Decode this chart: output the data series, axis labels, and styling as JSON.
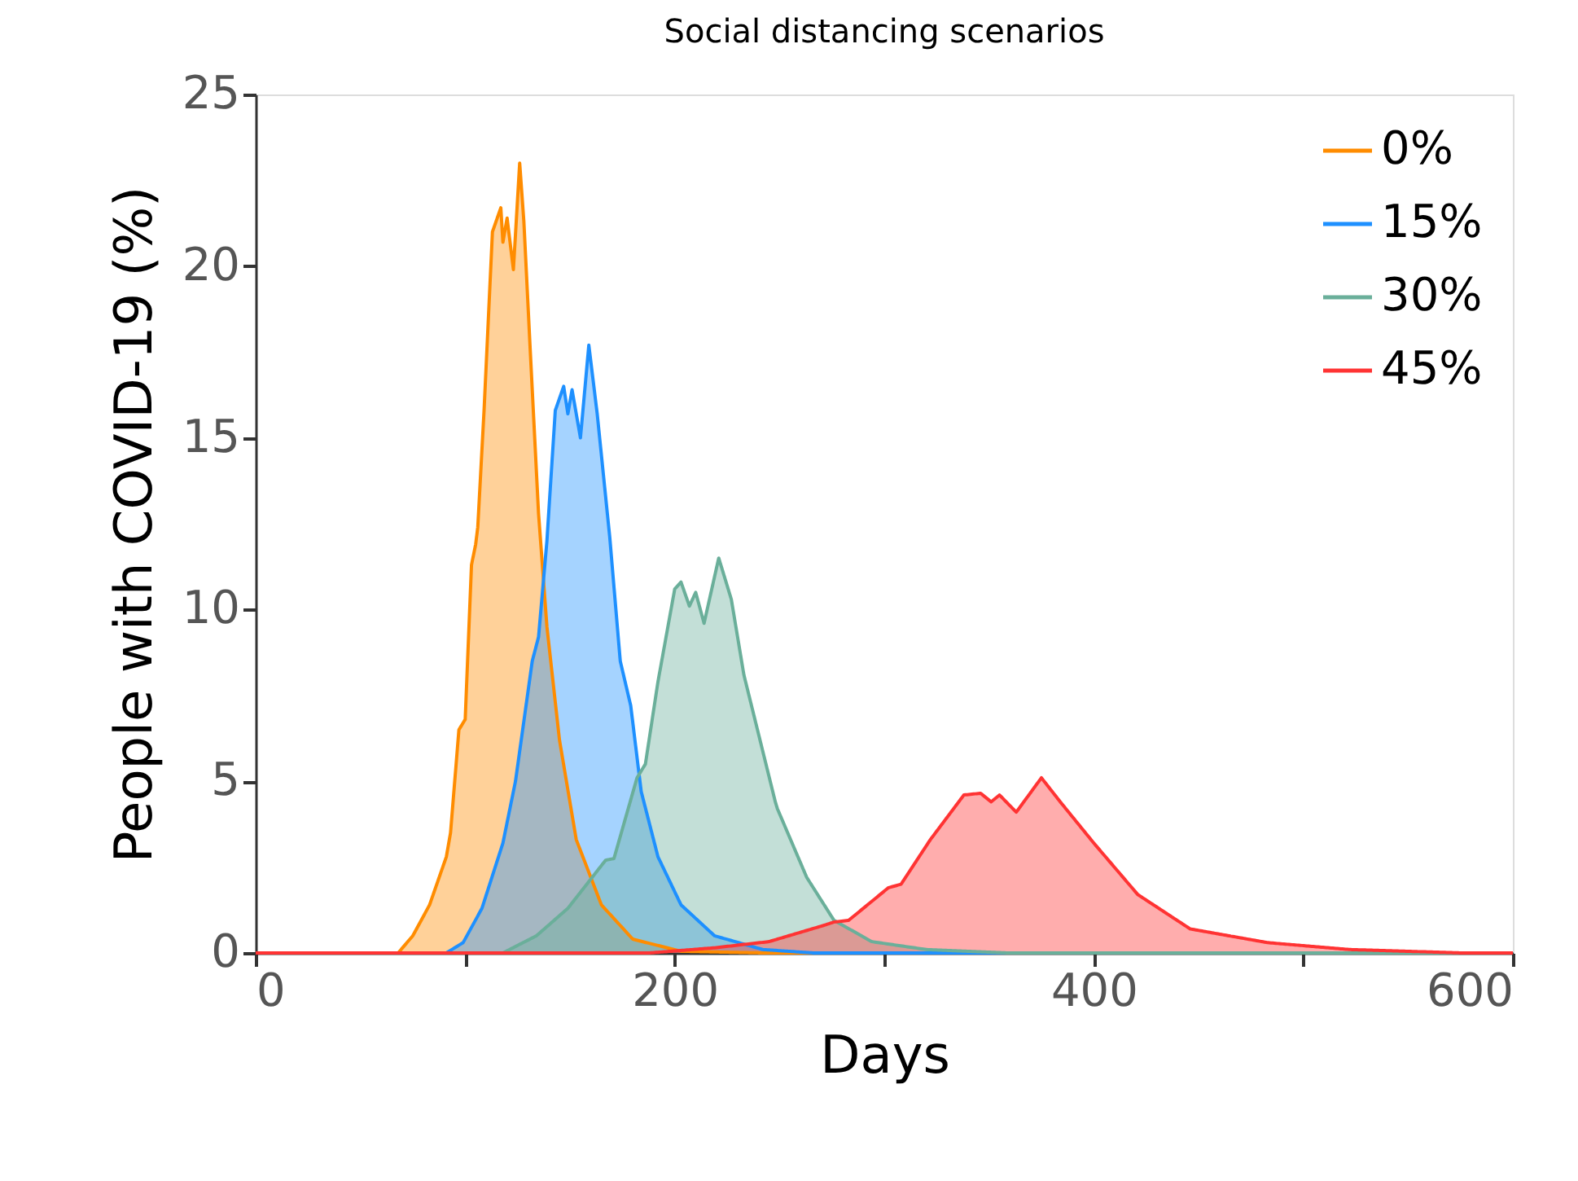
{
  "chart_data": {
    "type": "area",
    "title": "Social distancing scenarios",
    "xlabel": "Days",
    "ylabel": "People with COVID-19 (%)",
    "xlim": [
      0,
      600
    ],
    "xticks": [
      0,
      {
        "value": 100,
        "label": null
      },
      200,
      {
        "value": 300,
        "label": null
      },
      400,
      {
        "value": 500,
        "label": null
      },
      600
    ],
    "ylim": [
      0,
      25
    ],
    "yticks": [
      0,
      5,
      10,
      15,
      20,
      25
    ],
    "grid": false,
    "legend": "top right",
    "marker": "none",
    "line_style": "solid",
    "series": [
      {
        "name": "0%",
        "color": "#ff8c00",
        "x": [
          0,
          68,
          75,
          83,
          91,
          93,
          97,
          100,
          103,
          105,
          106,
          109,
          113,
          117,
          118,
          120,
          123,
          126,
          128,
          131,
          135,
          139,
          145,
          153,
          165,
          180,
          203,
          242,
          600
        ],
        "values": [
          0,
          0,
          0.5,
          1.4,
          2.8,
          3.5,
          6.5,
          6.8,
          11.3,
          11.9,
          12.4,
          15.8,
          21.0,
          21.7,
          20.7,
          21.4,
          19.9,
          23.0,
          21.3,
          17.6,
          12.8,
          9.5,
          6.2,
          3.3,
          1.4,
          0.4,
          0.05,
          0,
          0
        ]
      },
      {
        "name": "15%",
        "color": "#1e90ff",
        "x": [
          0,
          91,
          99,
          108,
          118,
          123,
          124,
          132,
          135,
          139,
          143,
          147,
          149,
          151,
          155,
          159,
          163,
          169,
          174,
          179,
          184,
          192,
          203,
          219,
          242,
          266,
          600
        ],
        "values": [
          0,
          0,
          0.3,
          1.3,
          3.2,
          4.7,
          5.0,
          8.5,
          9.2,
          12.0,
          15.8,
          16.5,
          15.7,
          16.4,
          15.0,
          17.7,
          15.7,
          12.1,
          8.5,
          7.2,
          4.7,
          2.8,
          1.4,
          0.5,
          0.1,
          0,
          0
        ]
      },
      {
        "name": "30%",
        "color": "#6aaf9a",
        "x": [
          0,
          118,
          134,
          149,
          167,
          171,
          182,
          186,
          192,
          200,
          203,
          207,
          210,
          214,
          221,
          227,
          233,
          248,
          249,
          263,
          276,
          294,
          320,
          359,
          600
        ],
        "values": [
          0,
          0,
          0.5,
          1.3,
          2.7,
          2.75,
          5.1,
          5.5,
          7.9,
          10.6,
          10.8,
          10.1,
          10.5,
          9.6,
          11.5,
          10.3,
          8.1,
          4.4,
          4.2,
          2.2,
          0.95,
          0.33,
          0.1,
          0,
          0
        ]
      },
      {
        "name": "45%",
        "color": "#ff3333",
        "x": [
          0,
          188,
          219,
          245,
          271,
          276,
          283,
          302,
          308,
          322,
          338,
          346,
          351,
          355,
          363,
          375,
          384,
          400,
          421,
          446,
          483,
          522,
          576,
          600
        ],
        "values": [
          0,
          0,
          0.15,
          0.33,
          0.8,
          0.9,
          0.95,
          1.9,
          2.0,
          3.3,
          4.6,
          4.65,
          4.4,
          4.6,
          4.1,
          5.1,
          4.4,
          3.2,
          1.7,
          0.7,
          0.3,
          0.1,
          0,
          0
        ]
      }
    ]
  }
}
